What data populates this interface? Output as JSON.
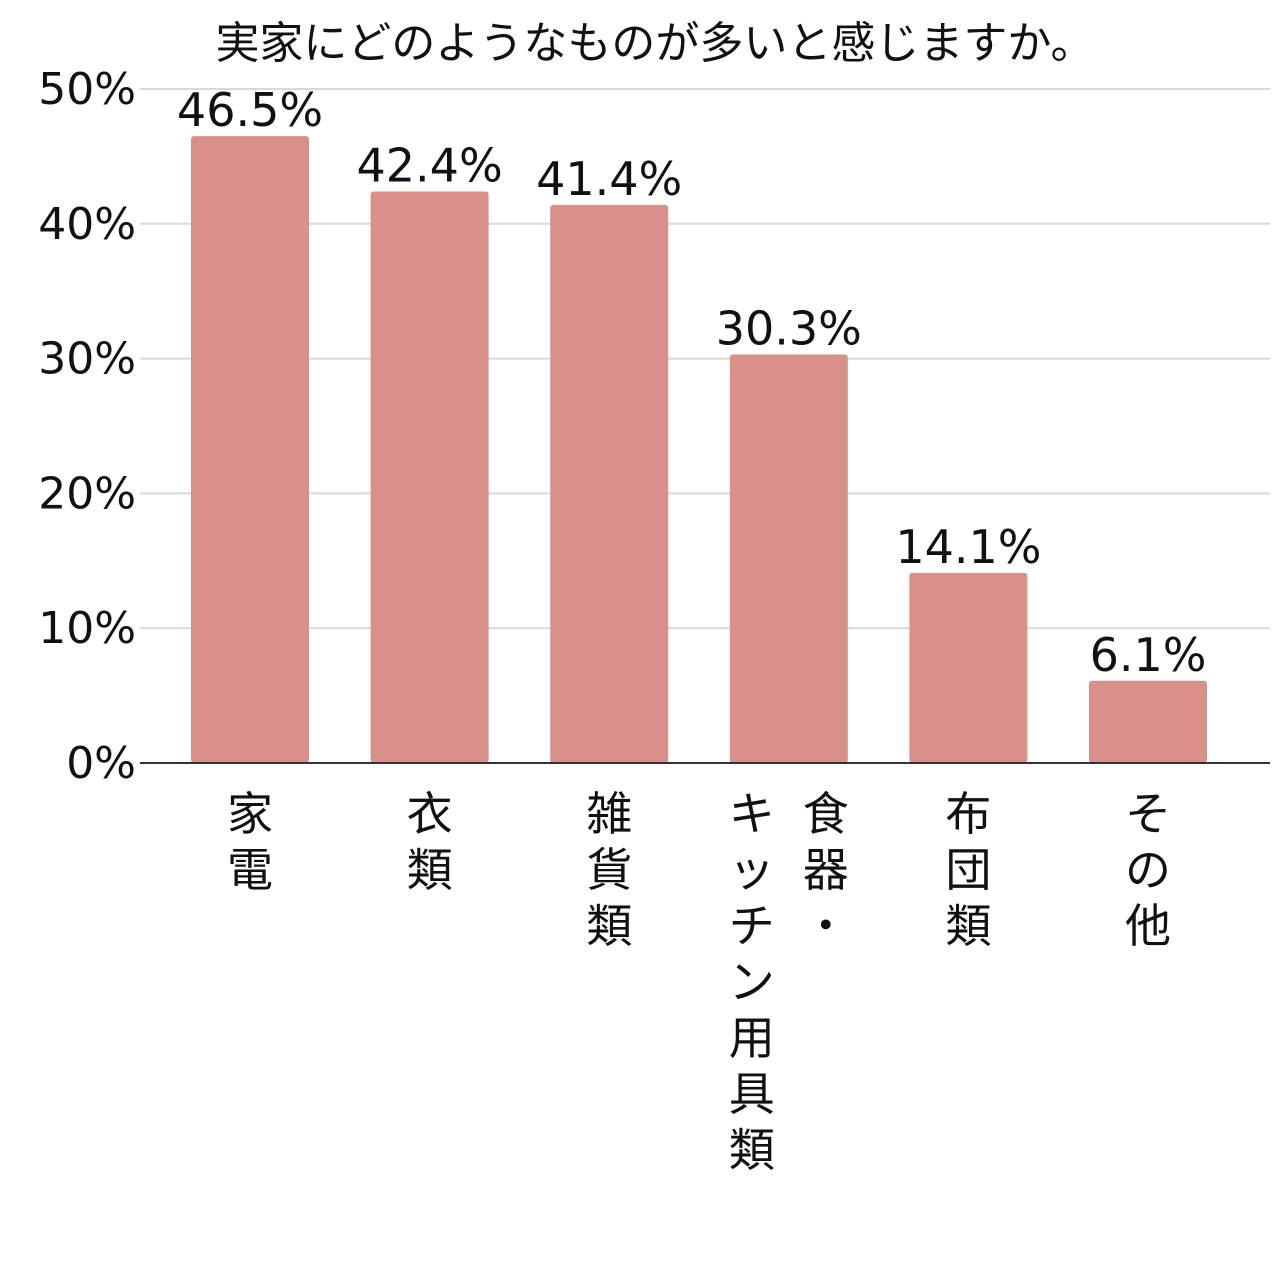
{
  "chart_data": {
    "type": "bar",
    "title": "実家にどのようなものが多いと感じますか。",
    "xlabel": "",
    "ylabel": "",
    "categories": [
      "家電",
      "衣類",
      "雑貨類",
      "食器・キッチン用具類",
      "布団類",
      "その他"
    ],
    "values": [
      46.5,
      42.4,
      41.4,
      30.3,
      14.1,
      6.1
    ],
    "data_labels": [
      "46.5%",
      "42.4%",
      "41.4%",
      "30.3%",
      "14.1%",
      "6.1%"
    ],
    "ylim": [
      0,
      50
    ],
    "yticks": [
      0,
      10,
      20,
      30,
      40,
      50
    ],
    "ytick_labels": [
      "0%",
      "10%",
      "20%",
      "30%",
      "40%",
      "50%"
    ],
    "grid": true,
    "legend": "none",
    "bar_color": "#d9908b",
    "category_label_columns": [
      [
        "家電"
      ],
      [
        "衣類"
      ],
      [
        "雑貨類"
      ],
      [
        "キッチン用具類",
        "食器・"
      ],
      [
        "布団類"
      ],
      [
        "その他"
      ]
    ]
  }
}
